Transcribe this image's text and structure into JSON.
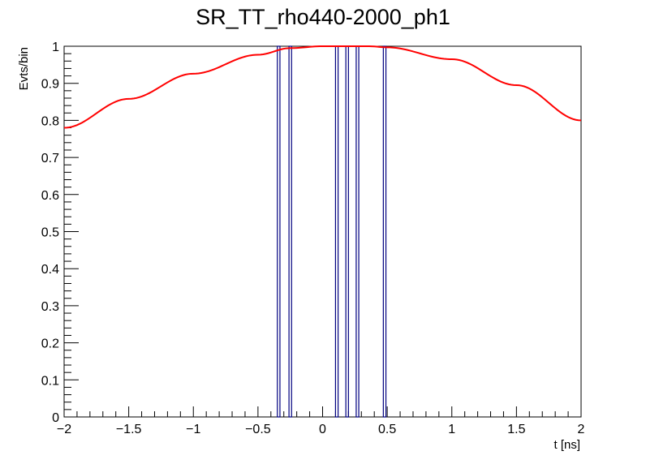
{
  "chart_data": {
    "type": "histogram_with_fit",
    "title": "SR_TT_rho440-2000_ph1",
    "xlabel": "t [ns]",
    "ylabel": "Evts/bin",
    "xlim": [
      -2,
      2
    ],
    "ylim": [
      0,
      1
    ],
    "x_ticks": [
      -2,
      -1.5,
      -1,
      -0.5,
      0,
      0.5,
      1,
      1.5,
      2
    ],
    "x_tick_labels": [
      "−2",
      "−1.5",
      "−1",
      "−0.5",
      "0",
      "0.5",
      "1",
      "1.5",
      "2"
    ],
    "y_ticks": [
      0,
      0.1,
      0.2,
      0.3,
      0.4,
      0.5,
      0.6,
      0.7,
      0.8,
      0.9,
      1
    ],
    "y_tick_labels": [
      "0",
      "0.1",
      "0.2",
      "0.3",
      "0.4",
      "0.5",
      "0.6",
      "0.7",
      "0.8",
      "0.9",
      "1"
    ],
    "histogram": {
      "color": "#000080",
      "bins": [
        {
          "x": -0.34,
          "value": 1
        },
        {
          "x": -0.25,
          "value": 1
        },
        {
          "x": 0.11,
          "value": 1
        },
        {
          "x": 0.19,
          "value": 1
        },
        {
          "x": 0.27,
          "value": 1
        },
        {
          "x": 0.48,
          "value": 1
        }
      ]
    },
    "fit_curve": {
      "color": "#ff0000",
      "x": [
        -2,
        -1.5,
        -1,
        -0.5,
        -0.25,
        0,
        0.36,
        0.5,
        1,
        1.5,
        2
      ],
      "y": [
        0.78,
        0.858,
        0.926,
        0.977,
        0.995,
        1.0,
        1.0,
        0.997,
        0.965,
        0.895,
        0.8
      ]
    },
    "grid": false,
    "legend": "none"
  }
}
